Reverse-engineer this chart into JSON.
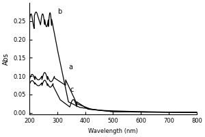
{
  "xlabel": "Wavelength (nm)",
  "ylabel": "Abs",
  "xlim": [
    200,
    800
  ],
  "ylim": [
    -0.005,
    0.3
  ],
  "yticks": [
    0.0,
    0.05,
    0.1,
    0.15,
    0.2,
    0.25
  ],
  "xticks": [
    200,
    300,
    400,
    500,
    600,
    700,
    800
  ],
  "label_a": "a",
  "label_b": "b",
  "label_c": "c",
  "line_color": "#000000",
  "bg_color": "#ffffff",
  "fontsize_tick": 6,
  "fontsize_xlabel": 6,
  "fontsize_ylabel": 7
}
